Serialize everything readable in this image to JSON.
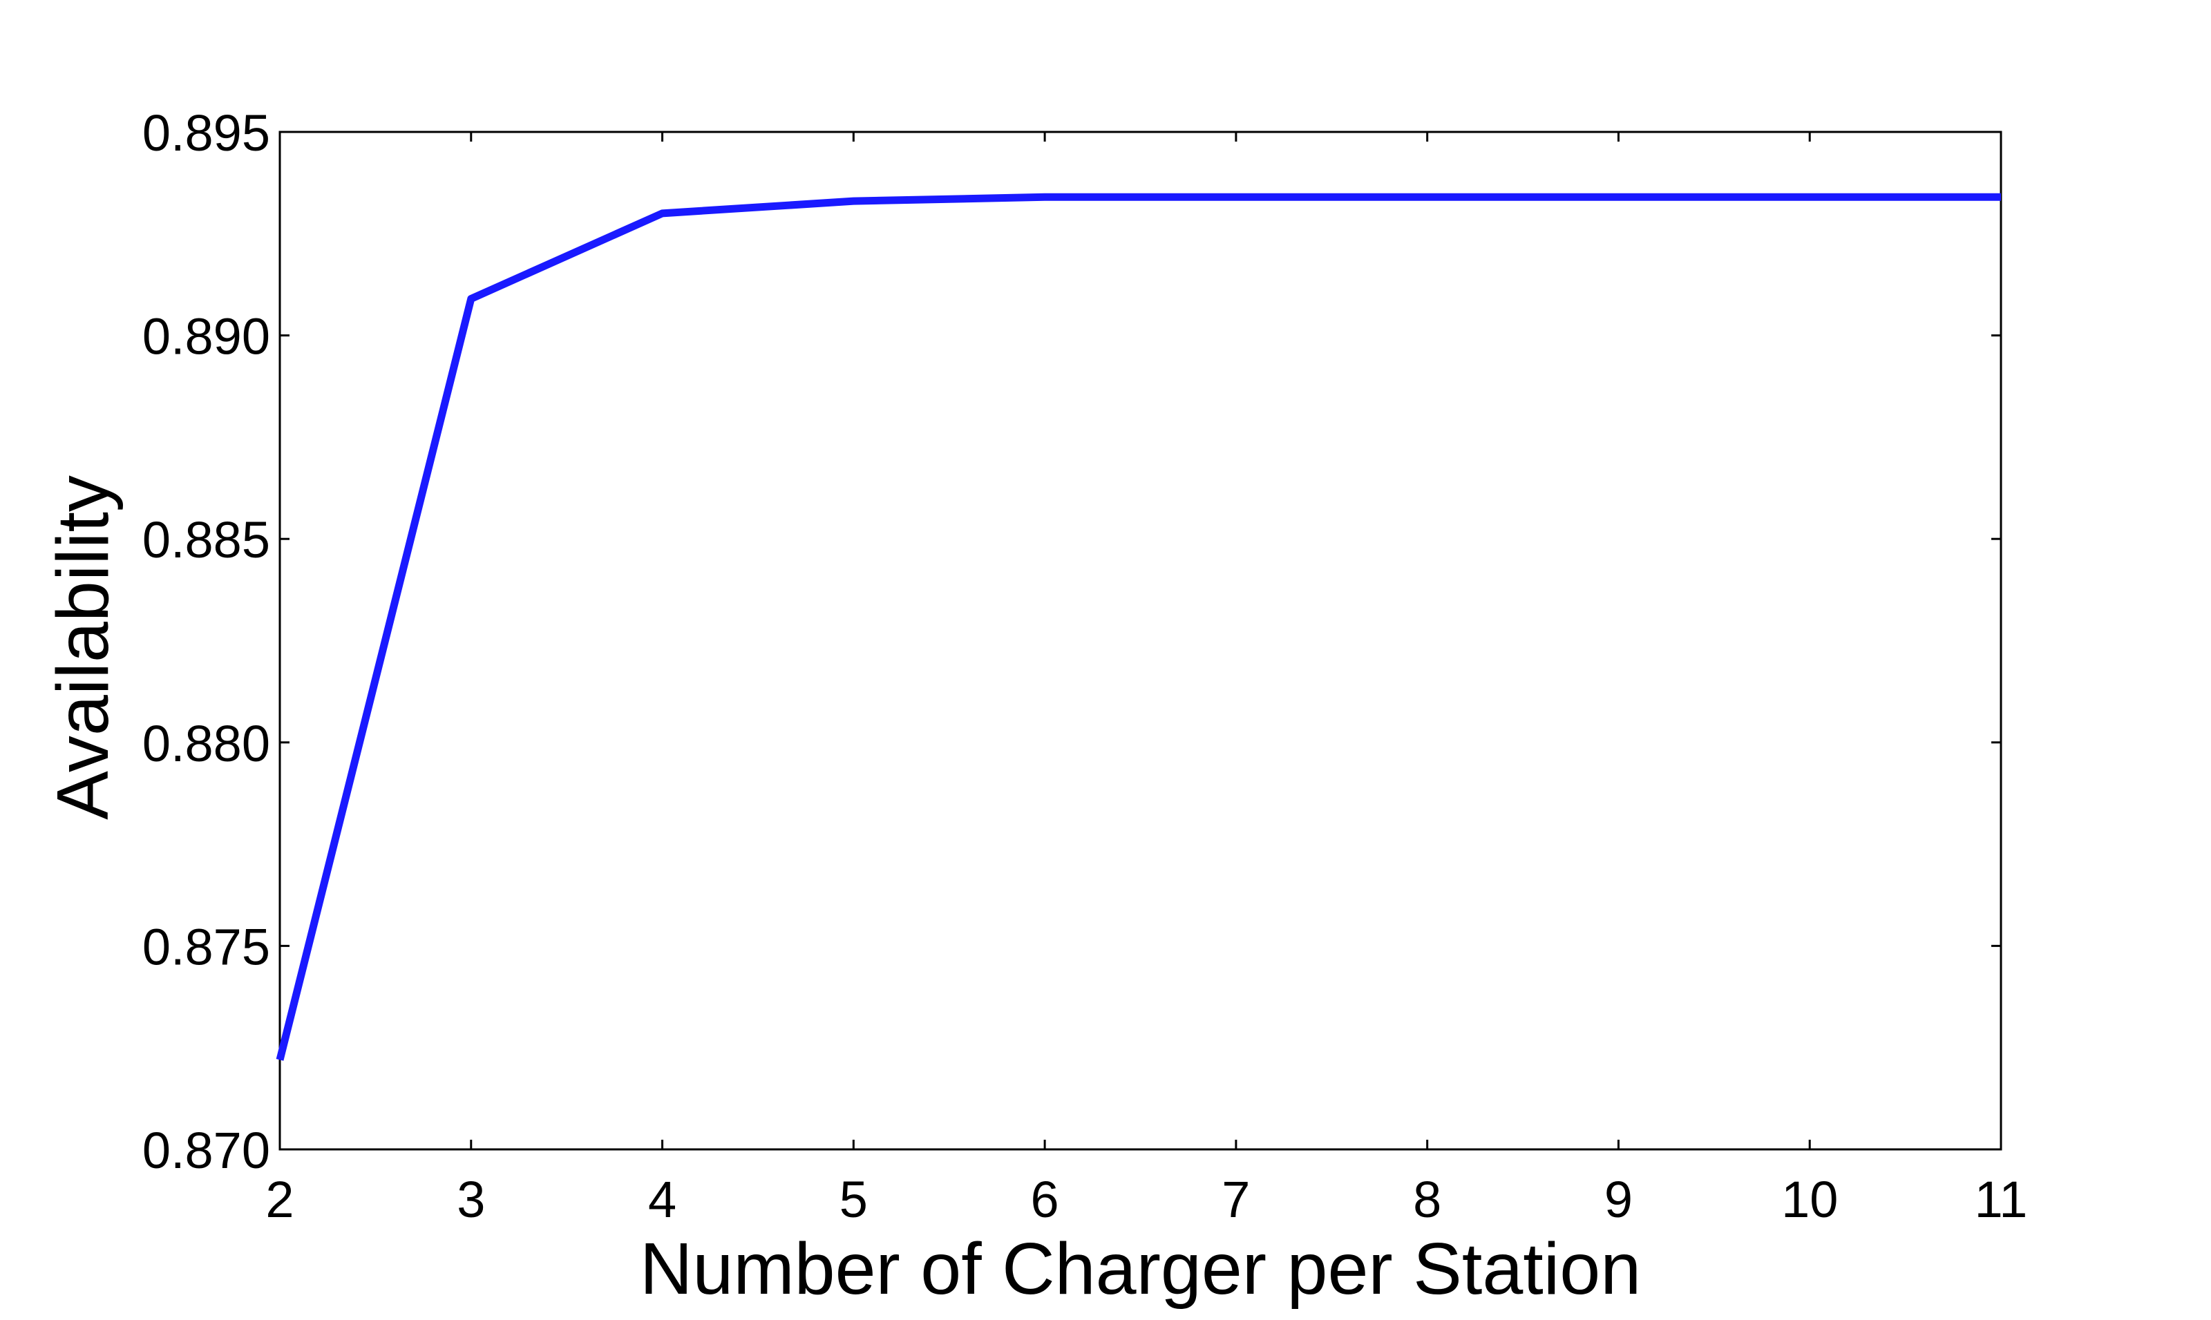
{
  "chart_data": {
    "type": "line",
    "title": "",
    "xlabel": "Number of Charger per Station",
    "ylabel": "Availability",
    "x": [
      2,
      3,
      4,
      5,
      6,
      7,
      8,
      9,
      10,
      11
    ],
    "series": [
      {
        "values": [
          0.8722,
          0.8909,
          0.893,
          0.8933,
          0.8934,
          0.8934,
          0.8934,
          0.8934,
          0.8934,
          0.8934
        ],
        "color": "#1a1aff"
      }
    ],
    "xlim": [
      2,
      11
    ],
    "ylim": [
      0.87,
      0.895
    ],
    "xticks": [
      "2",
      "3",
      "4",
      "5",
      "6",
      "7",
      "8",
      "9",
      "10",
      "11"
    ],
    "yticks": [
      "0.870",
      "0.875",
      "0.880",
      "0.885",
      "0.890",
      "0.895"
    ],
    "grid": false,
    "legend": "none"
  }
}
